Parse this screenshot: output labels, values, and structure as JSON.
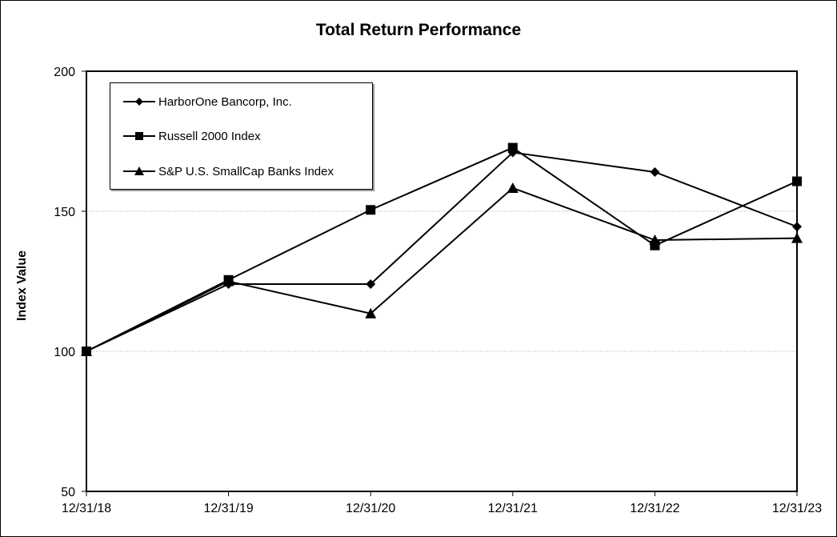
{
  "chart_data": {
    "type": "line",
    "title": "Total Return Performance",
    "xlabel": "",
    "ylabel": "Index Value",
    "categories": [
      "12/31/18",
      "12/31/19",
      "12/31/20",
      "12/31/21",
      "12/31/22",
      "12/31/23"
    ],
    "ylim": [
      50,
      200
    ],
    "yticks": [
      50,
      100,
      150,
      200
    ],
    "grid": "horizontal dotted",
    "legend_position": "top-left",
    "series": [
      {
        "name": "HarborOne Bancorp, Inc.",
        "marker": "diamond",
        "color": "#000000",
        "values": [
          100,
          124.0,
          124.0,
          171.0,
          164.0,
          144.5
        ]
      },
      {
        "name": "Russell 2000 Index",
        "marker": "square",
        "color": "#000000",
        "values": [
          100,
          125.5,
          150.5,
          172.7,
          137.8,
          160.7
        ]
      },
      {
        "name": "S&P U.S. SmallCap Banks Index",
        "marker": "triangle",
        "color": "#000000",
        "values": [
          100,
          125.0,
          113.5,
          158.3,
          139.7,
          140.4
        ]
      }
    ]
  }
}
